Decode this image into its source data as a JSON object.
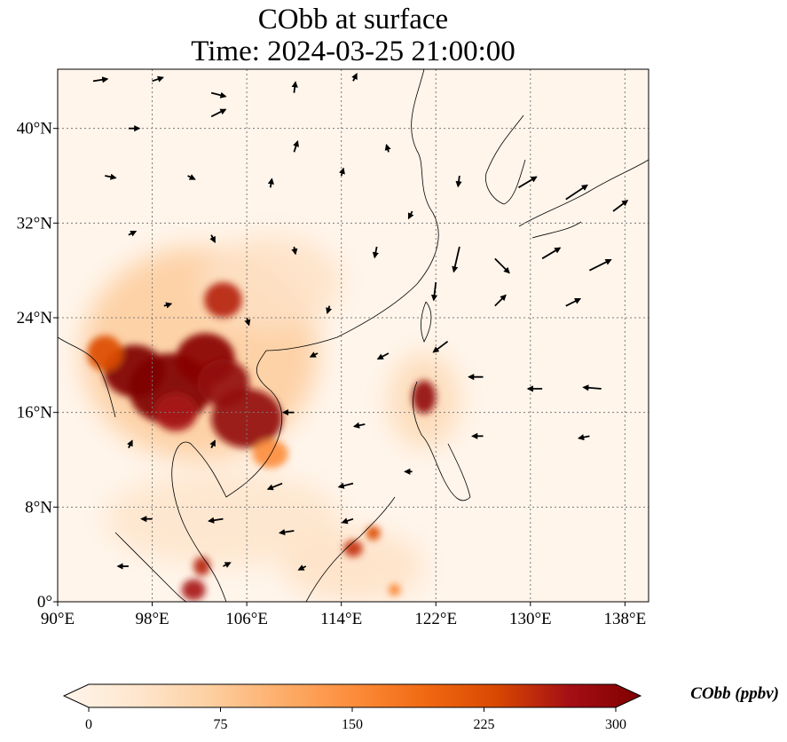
{
  "title": {
    "line1": "CObb at surface",
    "line2": "Time: 2024-03-25 21:00:00"
  },
  "map": {
    "lon_range": [
      90,
      140
    ],
    "lat_range": [
      0,
      45
    ],
    "lon_ticks": [
      90,
      98,
      106,
      114,
      122,
      130,
      138
    ],
    "lon_tick_labels": [
      "90°E",
      "98°E",
      "106°E",
      "114°E",
      "122°E",
      "130°E",
      "138°E"
    ],
    "lat_ticks": [
      0,
      8,
      16,
      24,
      32,
      40
    ],
    "lat_tick_labels": [
      "0°",
      "8°N",
      "16°N",
      "24°N",
      "32°N",
      "40°N"
    ],
    "gridlines": true,
    "background_color": "#fff5eb",
    "hotspots": [
      {
        "lon": 96.5,
        "lat": 19.5,
        "r_lon": 2.6,
        "r_lat": 2.2,
        "value": 300
      },
      {
        "lon": 99.5,
        "lat": 18.0,
        "r_lon": 3.5,
        "r_lat": 3.0,
        "value": 300
      },
      {
        "lon": 102.5,
        "lat": 20.5,
        "r_lon": 2.5,
        "r_lat": 2.2,
        "value": 290
      },
      {
        "lon": 104.0,
        "lat": 18.5,
        "r_lon": 2.2,
        "r_lat": 2.0,
        "value": 280
      },
      {
        "lon": 106.0,
        "lat": 15.5,
        "r_lon": 3.0,
        "r_lat": 2.5,
        "value": 280
      },
      {
        "lon": 104.0,
        "lat": 25.5,
        "r_lon": 1.6,
        "r_lat": 1.5,
        "value": 250
      },
      {
        "lon": 100.0,
        "lat": 16.0,
        "r_lon": 1.8,
        "r_lat": 1.6,
        "value": 260
      },
      {
        "lon": 121.0,
        "lat": 17.3,
        "r_lon": 1.0,
        "r_lat": 1.4,
        "value": 280
      },
      {
        "lon": 115.0,
        "lat": 4.5,
        "r_lon": 0.8,
        "r_lat": 0.7,
        "value": 240
      },
      {
        "lon": 116.7,
        "lat": 5.8,
        "r_lon": 0.6,
        "r_lat": 0.6,
        "value": 220
      },
      {
        "lon": 102.2,
        "lat": 3.0,
        "r_lon": 0.7,
        "r_lat": 0.8,
        "value": 250
      },
      {
        "lon": 101.5,
        "lat": 1.0,
        "r_lon": 1.0,
        "r_lat": 0.9,
        "value": 260
      },
      {
        "lon": 94.0,
        "lat": 21.0,
        "r_lon": 1.5,
        "r_lat": 1.5,
        "value": 220
      },
      {
        "lon": 108.0,
        "lat": 12.5,
        "r_lon": 1.5,
        "r_lat": 1.2,
        "value": 150
      },
      {
        "lon": 118.5,
        "lat": 1.0,
        "r_lon": 0.5,
        "r_lat": 0.5,
        "value": 160
      }
    ],
    "haze": [
      {
        "lon": 102,
        "lat": 21,
        "r_lon": 10,
        "r_lat": 9,
        "value": 80
      },
      {
        "lon": 108,
        "lat": 27,
        "r_lon": 6,
        "r_lat": 4,
        "value": 45
      },
      {
        "lon": 104,
        "lat": 7,
        "r_lon": 10,
        "r_lat": 4,
        "value": 40
      },
      {
        "lon": 115,
        "lat": 3,
        "r_lon": 6,
        "r_lat": 3,
        "value": 45
      },
      {
        "lon": 121,
        "lat": 17,
        "r_lon": 3,
        "r_lat": 4,
        "value": 60
      }
    ],
    "wind_vectors": [
      {
        "lon": 93,
        "lat": 44,
        "u": 2,
        "v": 0.3
      },
      {
        "lon": 98,
        "lat": 44,
        "u": 1.5,
        "v": 0.5
      },
      {
        "lon": 103,
        "lat": 43,
        "u": 2,
        "v": -0.5
      },
      {
        "lon": 110,
        "lat": 43,
        "u": 0.2,
        "v": 1.5
      },
      {
        "lon": 115,
        "lat": 44,
        "u": 0.5,
        "v": 1
      },
      {
        "lon": 96,
        "lat": 40,
        "u": 1.5,
        "v": 0
      },
      {
        "lon": 103,
        "lat": 41,
        "u": 2,
        "v": 1
      },
      {
        "lon": 110,
        "lat": 38,
        "u": 0.5,
        "v": 1.5
      },
      {
        "lon": 118,
        "lat": 38,
        "u": -0.3,
        "v": 1
      },
      {
        "lon": 94,
        "lat": 36,
        "u": 1.5,
        "v": -0.3
      },
      {
        "lon": 101,
        "lat": 36,
        "u": 1,
        "v": -0.5
      },
      {
        "lon": 108,
        "lat": 35,
        "u": 0.2,
        "v": 1.2
      },
      {
        "lon": 114,
        "lat": 36,
        "u": 0.3,
        "v": 1
      },
      {
        "lon": 124,
        "lat": 36,
        "u": -0.2,
        "v": -1.5
      },
      {
        "lon": 129,
        "lat": 35,
        "u": 2.5,
        "v": 1.5
      },
      {
        "lon": 133,
        "lat": 34,
        "u": 3,
        "v": 2
      },
      {
        "lon": 137,
        "lat": 33,
        "u": 2,
        "v": 1.5
      },
      {
        "lon": 96,
        "lat": 31,
        "u": 1,
        "v": 0.5
      },
      {
        "lon": 103,
        "lat": 31,
        "u": 0.5,
        "v": -1
      },
      {
        "lon": 110,
        "lat": 30,
        "u": 0.2,
        "v": -1
      },
      {
        "lon": 117,
        "lat": 30,
        "u": -0.3,
        "v": -1.5
      },
      {
        "lon": 124,
        "lat": 30,
        "u": -0.8,
        "v": -3.5
      },
      {
        "lon": 127,
        "lat": 29,
        "u": 2,
        "v": -2
      },
      {
        "lon": 131,
        "lat": 29,
        "u": 2.5,
        "v": 1.5
      },
      {
        "lon": 135,
        "lat": 28,
        "u": 3,
        "v": 1.5
      },
      {
        "lon": 99,
        "lat": 25,
        "u": 1,
        "v": 0.3
      },
      {
        "lon": 106,
        "lat": 24,
        "u": 0.3,
        "v": -1
      },
      {
        "lon": 113,
        "lat": 25,
        "u": -0.3,
        "v": -1
      },
      {
        "lon": 122,
        "lat": 27,
        "u": -0.3,
        "v": -2.5
      },
      {
        "lon": 127,
        "lat": 25,
        "u": 1.5,
        "v": 1.5
      },
      {
        "lon": 133,
        "lat": 25,
        "u": 2,
        "v": 1
      },
      {
        "lon": 112,
        "lat": 21,
        "u": -1,
        "v": -0.5
      },
      {
        "lon": 118,
        "lat": 21,
        "u": -1.5,
        "v": -0.8
      },
      {
        "lon": 126,
        "lat": 19,
        "u": -2,
        "v": 0
      },
      {
        "lon": 131,
        "lat": 18,
        "u": -2,
        "v": 0
      },
      {
        "lon": 136,
        "lat": 18,
        "u": -2.5,
        "v": 0.2
      },
      {
        "lon": 110,
        "lat": 16,
        "u": -1.5,
        "v": 0
      },
      {
        "lon": 116,
        "lat": 15,
        "u": -1.5,
        "v": -0.3
      },
      {
        "lon": 126,
        "lat": 14,
        "u": -1.5,
        "v": 0
      },
      {
        "lon": 135,
        "lat": 14,
        "u": -1.5,
        "v": -0.3
      },
      {
        "lon": 109,
        "lat": 10,
        "u": -2,
        "v": -0.8
      },
      {
        "lon": 115,
        "lat": 10,
        "u": -2,
        "v": -0.5
      },
      {
        "lon": 98,
        "lat": 7,
        "u": -1.5,
        "v": 0
      },
      {
        "lon": 104,
        "lat": 7,
        "u": -2,
        "v": -0.3
      },
      {
        "lon": 110,
        "lat": 6,
        "u": -2,
        "v": -0.3
      },
      {
        "lon": 115,
        "lat": 7,
        "u": -1.5,
        "v": -0.5
      },
      {
        "lon": 96,
        "lat": 3,
        "u": -1.5,
        "v": 0
      },
      {
        "lon": 104,
        "lat": 3,
        "u": 1,
        "v": 0.5
      },
      {
        "lon": 111,
        "lat": 3,
        "u": -1,
        "v": -0.5
      },
      {
        "lon": 96,
        "lat": 13,
        "u": 0.5,
        "v": 1
      },
      {
        "lon": 103,
        "lat": 13,
        "u": 0.5,
        "v": 1
      },
      {
        "lon": 120,
        "lat": 11,
        "u": -1,
        "v": 0
      },
      {
        "lon": 123,
        "lat": 22,
        "u": -2,
        "v": -1.5
      },
      {
        "lon": 120,
        "lat": 33,
        "u": -0.5,
        "v": -1
      }
    ]
  },
  "colorbar": {
    "label": "CObb (ppbv)",
    "vmin": 0,
    "vmax": 300,
    "ticks": [
      0,
      75,
      150,
      225,
      300
    ],
    "tick_labels": [
      "0",
      "75",
      "150",
      "225",
      "300"
    ],
    "colormap": [
      "#fff5eb",
      "#fee6ce",
      "#fdd0a2",
      "#fdae6b",
      "#fd8d3c",
      "#f16913",
      "#d94801",
      "#a50f15",
      "#7f0000"
    ]
  }
}
